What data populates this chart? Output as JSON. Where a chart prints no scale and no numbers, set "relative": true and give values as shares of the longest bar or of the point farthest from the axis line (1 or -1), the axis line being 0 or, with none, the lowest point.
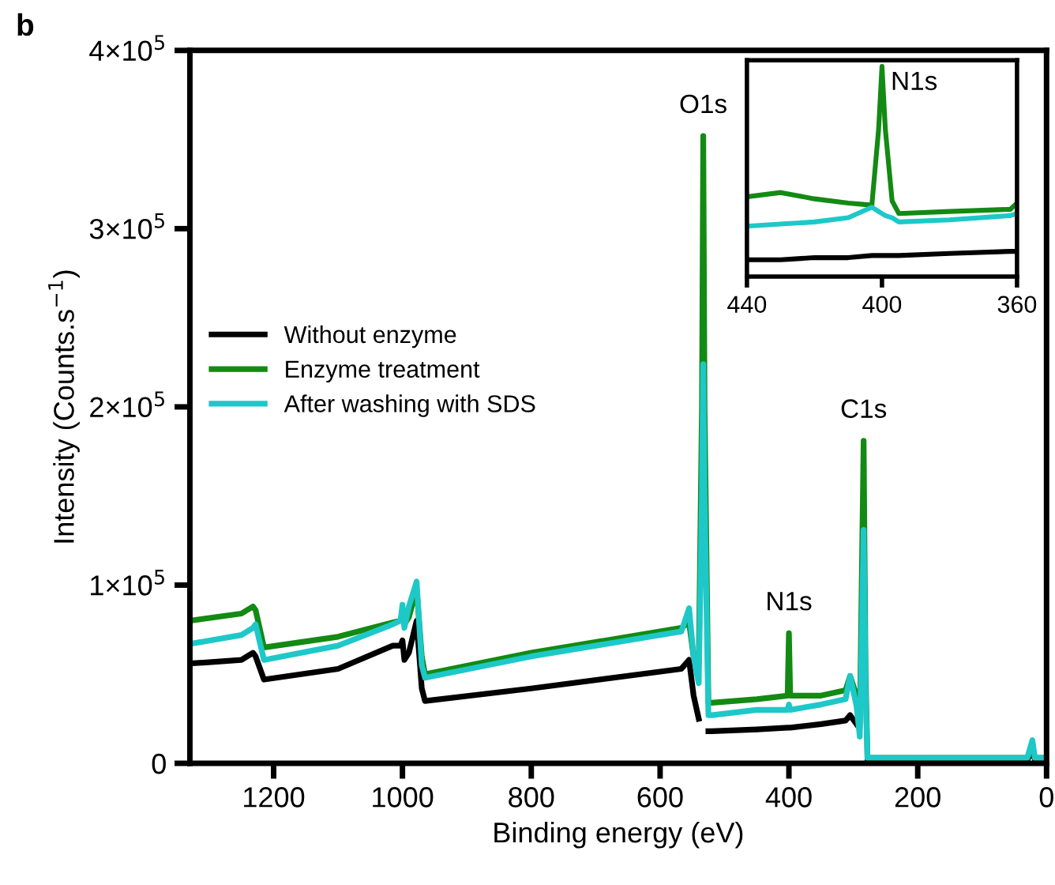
{
  "chart_data": [
    {
      "type": "line",
      "xlabel": "Binding energy (eV)",
      "ylabel": "Intensity (Counts.s$^{−1}$)",
      "x": [
        1330,
        1250,
        1232,
        1228,
        1215,
        1100,
        1015,
        1003,
        1000,
        997,
        990,
        978,
        970,
        965,
        800,
        567,
        555,
        548,
        540,
        535,
        533,
        531,
        525,
        520,
        450,
        402,
        400,
        398,
        350,
        312,
        305,
        295,
        290,
        287,
        284,
        281,
        278,
        270,
        100,
        30,
        22,
        18,
        0
      ],
      "series": [
        {
          "name": "Without enzyme",
          "color": "#000000",
          "values": [
            56000,
            58000,
            62000,
            60000,
            47000,
            53000,
            66000,
            66000,
            69000,
            58000,
            62000,
            80000,
            42000,
            35000,
            42000,
            53000,
            58000,
            38000,
            25000,
            null,
            null,
            null,
            18000,
            18000,
            19000,
            20000,
            20000,
            20000,
            22000,
            24000,
            27000,
            22000,
            null,
            null,
            null,
            null,
            2000,
            2000,
            2000,
            2000,
            7000,
            2000,
            2000
          ]
        },
        {
          "name": "Enzyme treatment",
          "color": "#138a13",
          "values": [
            80000,
            84000,
            88000,
            86000,
            65000,
            71000,
            79000,
            80000,
            84000,
            78000,
            82000,
            98000,
            60000,
            50000,
            62000,
            76000,
            79000,
            60000,
            55000,
            200000,
            352000,
            200000,
            34000,
            34000,
            36000,
            38000,
            73000,
            38000,
            38000,
            41000,
            49000,
            38000,
            20000,
            100000,
            181000,
            50000,
            3000,
            3000,
            3000,
            3000,
            8000,
            3000,
            3000
          ]
        },
        {
          "name": "After washing with SDS",
          "color": "#1ec8c8",
          "values": [
            67000,
            72000,
            76000,
            78000,
            58000,
            66000,
            78000,
            80000,
            89000,
            76000,
            88000,
            102000,
            55000,
            48000,
            60000,
            74000,
            87000,
            60000,
            45000,
            150000,
            224000,
            150000,
            27000,
            27000,
            30000,
            30000,
            33000,
            30000,
            33000,
            36000,
            49000,
            32000,
            15000,
            70000,
            131000,
            40000,
            3000,
            3000,
            3000,
            3000,
            13000,
            3000,
            3000
          ]
        }
      ],
      "xlim": [
        1330,
        0
      ],
      "xticks": [
        1200,
        1000,
        800,
        600,
        400,
        200,
        0
      ],
      "ylim": [
        0,
        400000
      ],
      "yticks": [
        0,
        {
          "value": 100000,
          "label": "1×10$^{5}$"
        },
        {
          "value": 200000,
          "label": "2×10$^{5}$"
        },
        {
          "value": 300000,
          "label": "3×10$^{5}$"
        },
        {
          "value": 400000,
          "label": "4×10$^{5}$"
        }
      ],
      "legend": "left",
      "grid": false,
      "marker": "none",
      "line_style": "solid",
      "annotations": [
        "b",
        {
          "text": "O1s",
          "x": 533,
          "y": 352000
        },
        {
          "text": "N1s",
          "x": 400,
          "y": 73000
        },
        {
          "text": "C1s",
          "x": 284,
          "y": 181000
        }
      ]
    },
    {
      "type": "line",
      "relative": true,
      "tick_labels": "x",
      "x": [
        440,
        430,
        420,
        410,
        403,
        401,
        400,
        399,
        397,
        395,
        380,
        362,
        360
      ],
      "series": [
        {
          "color": "#000000",
          "values": [
            0.08,
            0.08,
            0.09,
            0.09,
            0.1,
            0.1,
            0.1,
            0.1,
            0.1,
            0.1,
            0.11,
            0.12,
            0.12
          ]
        },
        {
          "color": "#138a13",
          "values": [
            0.38,
            0.4,
            0.37,
            0.35,
            0.34,
            0.7,
            1.0,
            0.7,
            0.36,
            0.3,
            0.31,
            0.32,
            0.35
          ]
        },
        {
          "color": "#1ec8c8",
          "values": [
            0.24,
            0.25,
            0.26,
            0.28,
            0.33,
            0.31,
            0.3,
            0.29,
            0.28,
            0.26,
            0.27,
            0.29,
            0.3
          ]
        }
      ],
      "xlim": [
        440,
        360
      ],
      "xticks": [
        440,
        400,
        360
      ],
      "grid": false,
      "marker": "none",
      "line_style": "solid",
      "annotations": [
        {
          "text": "N1s",
          "x": 400,
          "y": 1.0
        }
      ]
    }
  ]
}
